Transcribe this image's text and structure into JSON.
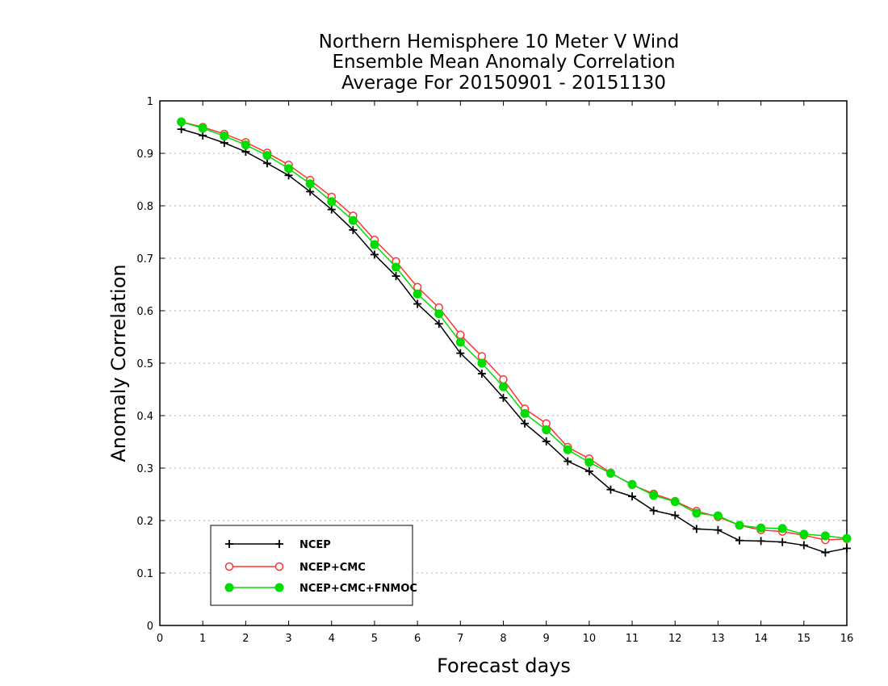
{
  "chart_data": {
    "type": "line",
    "title": [
      "Northern Hemisphere 10 Meter V Wind",
      "Ensemble Mean Anomaly Correlation",
      "Average For 20150901 - 20151130"
    ],
    "xlabel": "Forecast days",
    "ylabel": "Anomaly Correlation",
    "xlim": [
      0,
      16
    ],
    "ylim": [
      0,
      1
    ],
    "xticks": [
      "0",
      "1",
      "2",
      "3",
      "4",
      "5",
      "6",
      "7",
      "8",
      "9",
      "10",
      "11",
      "12",
      "13",
      "14",
      "15",
      "16"
    ],
    "yticks": [
      "0",
      "0.1",
      "0.2",
      "0.3",
      "0.4",
      "0.5",
      "0.6",
      "0.7",
      "0.8",
      "0.9",
      "1"
    ],
    "grid": "horizontal dotted",
    "legend_position": "bottom-left",
    "x": [
      0.5,
      1,
      1.5,
      2,
      2.5,
      3,
      3.5,
      4,
      4.5,
      5,
      5.5,
      6,
      6.5,
      7,
      7.5,
      8,
      8.5,
      9,
      9.5,
      10,
      10.5,
      11,
      11.5,
      12,
      12.5,
      13,
      13.5,
      14,
      14.5,
      15,
      15.5,
      16
    ],
    "series": [
      {
        "name": "NCEP",
        "color": "#000000",
        "marker": "plus",
        "values": [
          0.946,
          0.934,
          0.92,
          0.903,
          0.881,
          0.858,
          0.827,
          0.793,
          0.754,
          0.707,
          0.666,
          0.613,
          0.575,
          0.519,
          0.48,
          0.434,
          0.385,
          0.351,
          0.313,
          0.294,
          0.259,
          0.246,
          0.219,
          0.21,
          0.184,
          0.182,
          0.162,
          0.161,
          0.159,
          0.153,
          0.139,
          0.147
        ]
      },
      {
        "name": "NCEP+CMC",
        "color": "#ff3333",
        "marker": "open-circle",
        "values": [
          0.96,
          0.95,
          0.937,
          0.921,
          0.901,
          0.878,
          0.849,
          0.817,
          0.781,
          0.735,
          0.694,
          0.645,
          0.606,
          0.554,
          0.513,
          0.469,
          0.413,
          0.385,
          0.34,
          0.318,
          0.291,
          0.268,
          0.251,
          0.237,
          0.218,
          0.207,
          0.191,
          0.182,
          0.179,
          0.172,
          0.163,
          0.165
        ]
      },
      {
        "name": "NCEP+CMC+FNMOC",
        "color": "#00dd00",
        "marker": "filled-circle",
        "values": [
          0.96,
          0.948,
          0.933,
          0.916,
          0.896,
          0.871,
          0.842,
          0.808,
          0.772,
          0.726,
          0.683,
          0.632,
          0.594,
          0.54,
          0.5,
          0.455,
          0.404,
          0.373,
          0.335,
          0.311,
          0.29,
          0.269,
          0.248,
          0.236,
          0.214,
          0.209,
          0.191,
          0.186,
          0.185,
          0.174,
          0.171,
          0.166
        ]
      }
    ]
  }
}
